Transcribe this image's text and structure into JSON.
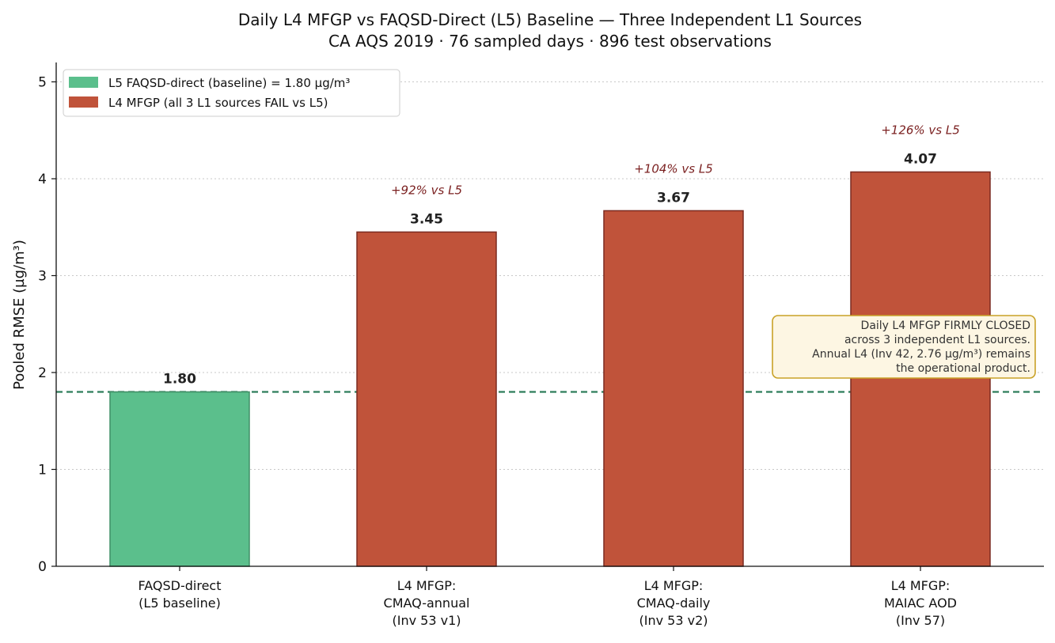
{
  "chart_data": {
    "type": "bar",
    "title": "Daily L4 MFGP vs FAQSD-Direct (L5) Baseline — Three Independent L1 Sources",
    "subtitle": "CA AQS 2019 · 76 sampled days · 896 test observations",
    "xlabel": "",
    "ylabel": "Pooled RMSE (µg/m³)",
    "ylim": [
      0,
      5.2
    ],
    "yticks": [
      "0",
      "1",
      "2",
      "3",
      "4",
      "5"
    ],
    "grid": "horizontal dotted",
    "legend_position": "upper-left",
    "categories": [
      [
        "FAQSD-direct",
        "(L5 baseline)"
      ],
      [
        "L4 MFGP:",
        "CMAQ-annual",
        "(Inv 53 v1)"
      ],
      [
        "L4 MFGP:",
        "CMAQ-daily",
        "(Inv 53 v2)"
      ],
      [
        "L4 MFGP:",
        "MAIAC AOD",
        "(Inv 57)"
      ]
    ],
    "values": [
      1.8,
      3.45,
      3.67,
      4.07
    ],
    "value_labels": [
      "1.80",
      "3.45",
      "3.67",
      "4.07"
    ],
    "pct_labels": [
      "",
      "+92% vs L5",
      "+104% vs L5",
      "+126% vs L5"
    ],
    "bar_colors": [
      "#5bbf8c",
      "#c0533a",
      "#c0533a",
      "#c0533a"
    ],
    "bar_edge_colors": [
      "#3f8f66",
      "#7a2a20",
      "#7a2a20",
      "#7a2a20"
    ],
    "baseline": {
      "value": 1.8,
      "color": "#2e7d5b"
    },
    "legend": [
      {
        "label": "L5 FAQSD-direct (baseline) = 1.80 µg/m³",
        "color": "#5bbf8c"
      },
      {
        "label": "L4 MFGP (all 3 L1 sources FAIL vs L5)",
        "color": "#c0533a"
      }
    ],
    "annotation": [
      "Daily L4 MFGP FIRMLY CLOSED",
      "across 3 independent L1 sources.",
      "Annual L4 (Inv 42, 2.76 µg/m³) remains",
      "the operational product."
    ],
    "colors": {
      "pct_text": "#7a1f1f",
      "annotation_bg": "#fdf6e3",
      "annotation_border": "#c9a227"
    }
  }
}
